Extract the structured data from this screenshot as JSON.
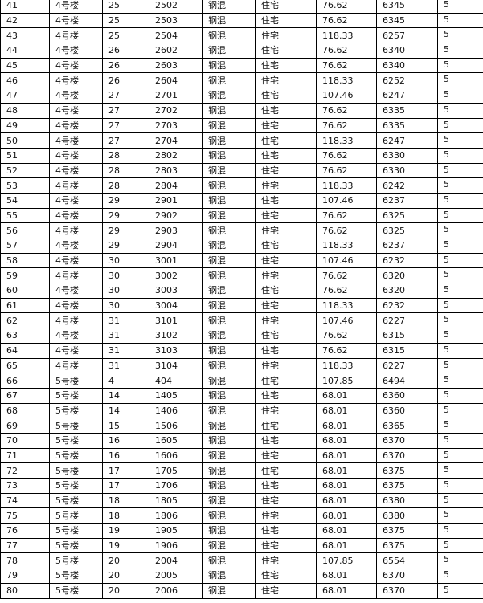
{
  "table": {
    "rows": [
      [
        "41",
        "4号楼",
        "25",
        "2502",
        "钢混",
        "住宅",
        "76.62",
        "6345",
        "5"
      ],
      [
        "42",
        "4号楼",
        "25",
        "2503",
        "钢混",
        "住宅",
        "76.62",
        "6345",
        "5"
      ],
      [
        "43",
        "4号楼",
        "25",
        "2504",
        "钢混",
        "住宅",
        "118.33",
        "6257",
        "5"
      ],
      [
        "44",
        "4号楼",
        "26",
        "2602",
        "钢混",
        "住宅",
        "76.62",
        "6340",
        "5"
      ],
      [
        "45",
        "4号楼",
        "26",
        "2603",
        "钢混",
        "住宅",
        "76.62",
        "6340",
        "5"
      ],
      [
        "46",
        "4号楼",
        "26",
        "2604",
        "钢混",
        "住宅",
        "118.33",
        "6252",
        "5"
      ],
      [
        "47",
        "4号楼",
        "27",
        "2701",
        "钢混",
        "住宅",
        "107.46",
        "6247",
        "5"
      ],
      [
        "48",
        "4号楼",
        "27",
        "2702",
        "钢混",
        "住宅",
        "76.62",
        "6335",
        "5"
      ],
      [
        "49",
        "4号楼",
        "27",
        "2703",
        "钢混",
        "住宅",
        "76.62",
        "6335",
        "5"
      ],
      [
        "50",
        "4号楼",
        "27",
        "2704",
        "钢混",
        "住宅",
        "118.33",
        "6247",
        "5"
      ],
      [
        "51",
        "4号楼",
        "28",
        "2802",
        "钢混",
        "住宅",
        "76.62",
        "6330",
        "5"
      ],
      [
        "52",
        "4号楼",
        "28",
        "2803",
        "钢混",
        "住宅",
        "76.62",
        "6330",
        "5"
      ],
      [
        "53",
        "4号楼",
        "28",
        "2804",
        "钢混",
        "住宅",
        "118.33",
        "6242",
        "5"
      ],
      [
        "54",
        "4号楼",
        "29",
        "2901",
        "钢混",
        "住宅",
        "107.46",
        "6237",
        "5"
      ],
      [
        "55",
        "4号楼",
        "29",
        "2902",
        "钢混",
        "住宅",
        "76.62",
        "6325",
        "5"
      ],
      [
        "56",
        "4号楼",
        "29",
        "2903",
        "钢混",
        "住宅",
        "76.62",
        "6325",
        "5"
      ],
      [
        "57",
        "4号楼",
        "29",
        "2904",
        "钢混",
        "住宅",
        "118.33",
        "6237",
        "5"
      ],
      [
        "58",
        "4号楼",
        "30",
        "3001",
        "钢混",
        "住宅",
        "107.46",
        "6232",
        "5"
      ],
      [
        "59",
        "4号楼",
        "30",
        "3002",
        "钢混",
        "住宅",
        "76.62",
        "6320",
        "5"
      ],
      [
        "60",
        "4号楼",
        "30",
        "3003",
        "钢混",
        "住宅",
        "76.62",
        "6320",
        "5"
      ],
      [
        "61",
        "4号楼",
        "30",
        "3004",
        "钢混",
        "住宅",
        "118.33",
        "6232",
        "5"
      ],
      [
        "62",
        "4号楼",
        "31",
        "3101",
        "钢混",
        "住宅",
        "107.46",
        "6227",
        "5"
      ],
      [
        "63",
        "4号楼",
        "31",
        "3102",
        "钢混",
        "住宅",
        "76.62",
        "6315",
        "5"
      ],
      [
        "64",
        "4号楼",
        "31",
        "3103",
        "钢混",
        "住宅",
        "76.62",
        "6315",
        "5"
      ],
      [
        "65",
        "4号楼",
        "31",
        "3104",
        "钢混",
        "住宅",
        "118.33",
        "6227",
        "5"
      ],
      [
        "66",
        "5号楼",
        "4",
        "404",
        "钢混",
        "住宅",
        "107.85",
        "6494",
        "5"
      ],
      [
        "67",
        "5号楼",
        "14",
        "1405",
        "钢混",
        "住宅",
        "68.01",
        "6360",
        "5"
      ],
      [
        "68",
        "5号楼",
        "14",
        "1406",
        "钢混",
        "住宅",
        "68.01",
        "6360",
        "5"
      ],
      [
        "69",
        "5号楼",
        "15",
        "1506",
        "钢混",
        "住宅",
        "68.01",
        "6365",
        "5"
      ],
      [
        "70",
        "5号楼",
        "16",
        "1605",
        "钢混",
        "住宅",
        "68.01",
        "6370",
        "5"
      ],
      [
        "71",
        "5号楼",
        "16",
        "1606",
        "钢混",
        "住宅",
        "68.01",
        "6370",
        "5"
      ],
      [
        "72",
        "5号楼",
        "17",
        "1705",
        "钢混",
        "住宅",
        "68.01",
        "6375",
        "5"
      ],
      [
        "73",
        "5号楼",
        "17",
        "1706",
        "钢混",
        "住宅",
        "68.01",
        "6375",
        "5"
      ],
      [
        "74",
        "5号楼",
        "18",
        "1805",
        "钢混",
        "住宅",
        "68.01",
        "6380",
        "5"
      ],
      [
        "75",
        "5号楼",
        "18",
        "1806",
        "钢混",
        "住宅",
        "68.01",
        "6380",
        "5"
      ],
      [
        "76",
        "5号楼",
        "19",
        "1905",
        "钢混",
        "住宅",
        "68.01",
        "6375",
        "5"
      ],
      [
        "77",
        "5号楼",
        "19",
        "1906",
        "钢混",
        "住宅",
        "68.01",
        "6375",
        "5"
      ],
      [
        "78",
        "5号楼",
        "20",
        "2004",
        "钢混",
        "住宅",
        "107.85",
        "6554",
        "5"
      ],
      [
        "79",
        "5号楼",
        "20",
        "2005",
        "钢混",
        "住宅",
        "68.01",
        "6370",
        "5"
      ],
      [
        "80",
        "5号楼",
        "20",
        "2006",
        "钢混",
        "住宅",
        "68.01",
        "6370",
        "5"
      ]
    ]
  }
}
